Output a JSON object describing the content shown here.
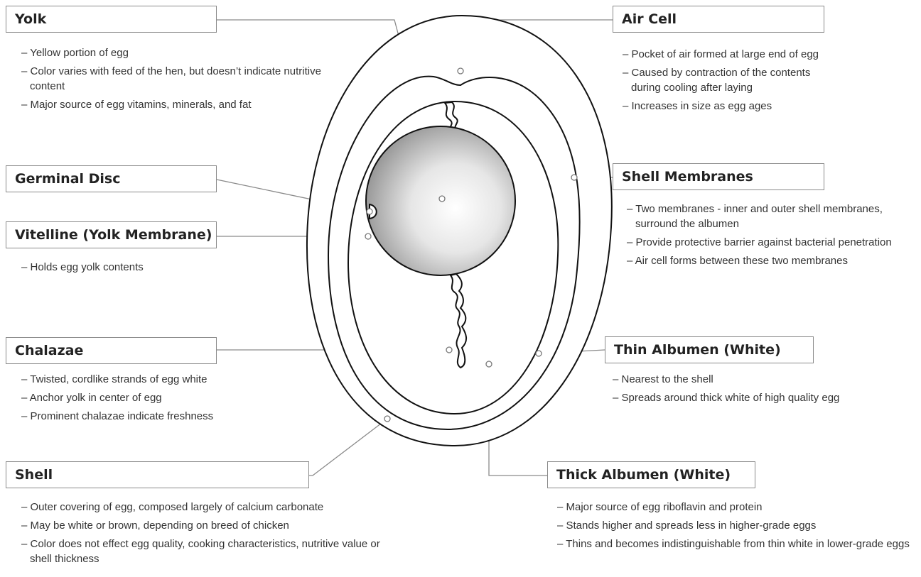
{
  "labels": [
    {
      "title": "Yolk",
      "bullets": [
        "– Yellow portion of egg",
        "– Color varies with feed of the hen, but doesn’t indicate nutritive content",
        "– Major source of egg vitamins, minerals, and fat"
      ]
    },
    {
      "title": "Germinal Disc",
      "bullets": []
    },
    {
      "title": "Vitelline (Yolk Membrane)",
      "bullets": [
        "– Holds egg yolk contents"
      ]
    },
    {
      "title": "Chalazae",
      "bullets": [
        "– Twisted, cordlike strands of egg white",
        "– Anchor yolk in center of egg",
        "– Prominent chalazae indicate freshness"
      ]
    },
    {
      "title": "Shell",
      "bullets": [
        "– Outer covering of egg, composed largely of calcium carbonate",
        "– May be white or brown, depending on breed of chicken",
        "– Color does not effect egg quality, cooking characteristics, nutritive value or shell thickness"
      ]
    },
    {
      "title": "Air Cell",
      "bullets": [
        "– Pocket of air formed at large end of egg",
        "– Caused by contraction of the contents during cooling after laying",
        "– Increases in size as egg ages"
      ]
    },
    {
      "title": "Shell Membranes",
      "bullets": [
        "– Two membranes - inner and outer shell membranes, surround the albumen",
        "– Provide protective barrier against bacterial penetration",
        "– Air cell forms between these two membranes"
      ]
    },
    {
      "title": "Thin Albumen (White)",
      "bullets": [
        "– Nearest to the shell",
        "– Spreads around thick white of high quality egg"
      ]
    },
    {
      "title": "Thick Albumen (White)",
      "bullets": [
        "– Major source of egg riboflavin and protein",
        "– Stands higher and spreads less in higher-grade eggs",
        "– Thins and becomes indistinguishable from thin white in lower-grade eggs"
      ]
    }
  ]
}
